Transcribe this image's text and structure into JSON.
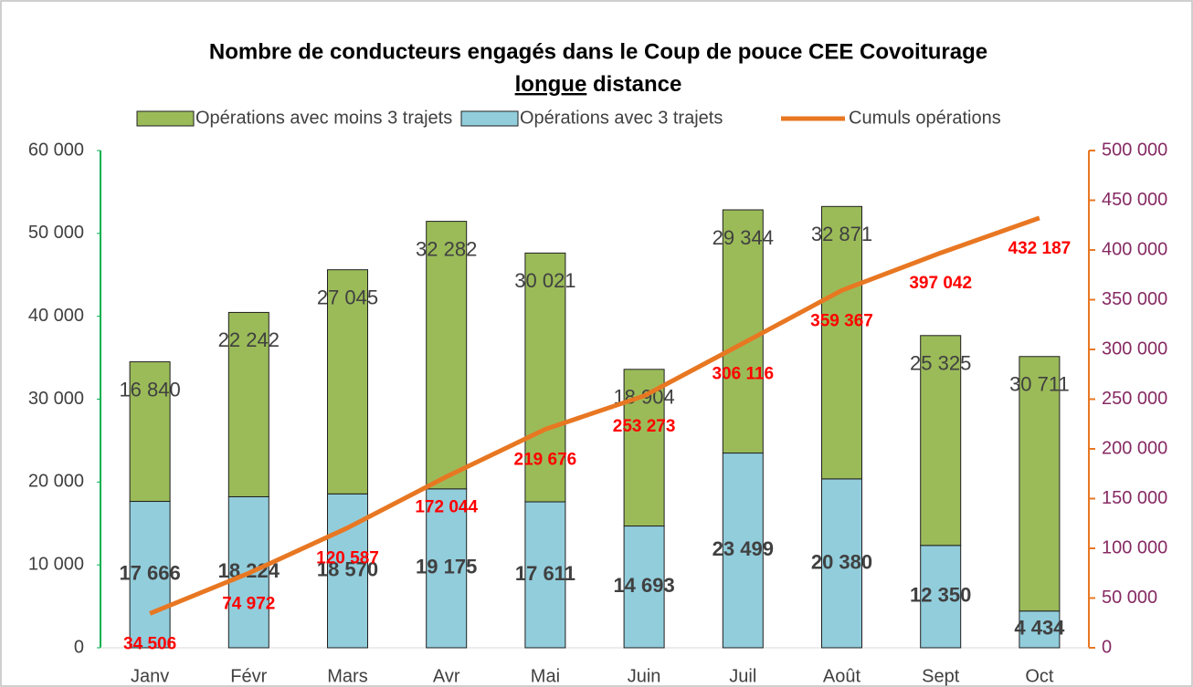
{
  "chart_data": {
    "type": "bar",
    "title": {
      "line1": "Nombre de conducteurs engagés dans le Coup de pouce CEE Covoiturage",
      "underlined": "longue",
      "rest": "distance"
    },
    "categories": [
      "Janv",
      "Févr",
      "Mars",
      "Avr",
      "Mai",
      "Juin",
      "Juil",
      "Août",
      "Sept",
      "Oct"
    ],
    "series": [
      {
        "name": "Opérations avec 3 trajets",
        "color": "#92cddc",
        "type": "bar",
        "values": [
          17666,
          18224,
          18570,
          19175,
          17611,
          14693,
          23499,
          20380,
          12350,
          4434
        ],
        "value_labels": [
          "17 666",
          "18 224",
          "18 570",
          "19 175",
          "17 611",
          "14 693",
          "23 499",
          "20 380",
          "12 350",
          "4 434"
        ]
      },
      {
        "name": "Opérations avec moins 3 trajets",
        "color": "#9bbb59",
        "type": "bar",
        "values": [
          16840,
          22242,
          27045,
          32282,
          30021,
          18904,
          29344,
          32871,
          25325,
          30711
        ],
        "value_labels": [
          "16 840",
          "22 242",
          "27 045",
          "32 282",
          "30 021",
          "18 904",
          "29 344",
          "32 871",
          "25 325",
          "30 711"
        ]
      },
      {
        "name": "Cumuls opérations",
        "color": "#e87722",
        "type": "line",
        "axis": "y2",
        "values": [
          34506,
          74972,
          120587,
          172044,
          219676,
          253273,
          306116,
          359367,
          397042,
          432187
        ],
        "value_labels": [
          "34 506",
          "74 972",
          "120 587",
          "172 044",
          "219 676",
          "253 273",
          "306 116",
          "359 367",
          "397 042",
          "432 187"
        ]
      }
    ],
    "stacked": true,
    "ylim": [
      0,
      60000
    ],
    "yticks": [
      0,
      {
        "value": 10000,
        "label": "10 000"
      },
      {
        "value": 20000,
        "label": "20 000"
      },
      {
        "value": 30000,
        "label": "30 000"
      },
      {
        "value": 40000,
        "label": "40 000"
      },
      {
        "value": 50000,
        "label": "50 000"
      },
      {
        "value": 60000,
        "label": "60 000"
      }
    ],
    "y2lim": [
      0,
      500000
    ],
    "y2ticks": [
      0,
      {
        "value": 50000,
        "label": "50 000"
      },
      {
        "value": 100000,
        "label": "100 000"
      },
      {
        "value": 150000,
        "label": "150 000"
      },
      {
        "value": 200000,
        "label": "200 000"
      },
      {
        "value": 250000,
        "label": "250 000"
      },
      {
        "value": 300000,
        "label": "300 000"
      },
      {
        "value": 350000,
        "label": "350 000"
      },
      {
        "value": 400000,
        "label": "400 000"
      },
      {
        "value": 450000,
        "label": "450 000"
      },
      {
        "value": 500000,
        "label": "500 000"
      }
    ],
    "legend": "top",
    "grid": false
  }
}
